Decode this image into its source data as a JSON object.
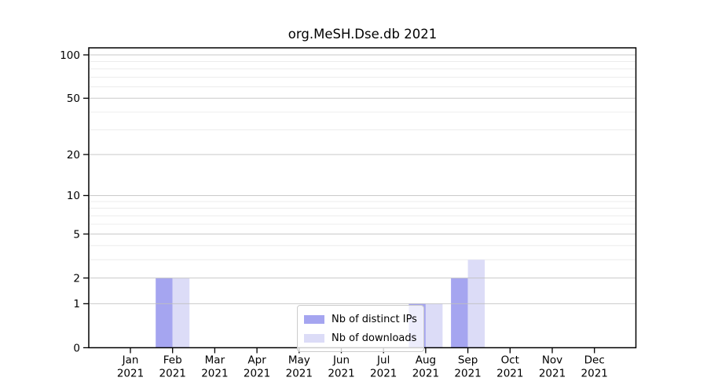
{
  "chart_data": {
    "type": "bar",
    "title": "org.MeSH.Dse.db 2021",
    "categories": [
      "Jan 2021",
      "Feb 2021",
      "Mar 2021",
      "Apr 2021",
      "May 2021",
      "Jun 2021",
      "Jul 2021",
      "Aug 2021",
      "Sep 2021",
      "Oct 2021",
      "Nov 2021",
      "Dec 2021"
    ],
    "series": [
      {
        "name": "Nb of distinct IPs",
        "color": "#a5a5f0",
        "values": [
          0,
          2,
          0,
          0,
          0,
          0,
          0,
          1,
          2,
          0,
          0,
          0
        ]
      },
      {
        "name": "Nb of downloads",
        "color": "#dcdcf7",
        "values": [
          0,
          2,
          0,
          0,
          0,
          0,
          0,
          1,
          3,
          0,
          0,
          0
        ]
      }
    ],
    "yscale": "log1p",
    "ylim": [
      0,
      100
    ],
    "yticks": [
      0,
      1,
      2,
      5,
      10,
      20,
      50,
      100
    ],
    "minor_gridlines": [
      3,
      4,
      6,
      7,
      8,
      9,
      30,
      40,
      60,
      70,
      80,
      90
    ],
    "grid": true,
    "legend_position": "bottom-center",
    "colors": {
      "axis": "#000000",
      "text": "#000000",
      "grid_major": "#c0c0c0",
      "grid_minor": "#ececec",
      "legend_border": "#cccccc",
      "legend_bg": "rgba(255,255,255,0.8)"
    }
  }
}
